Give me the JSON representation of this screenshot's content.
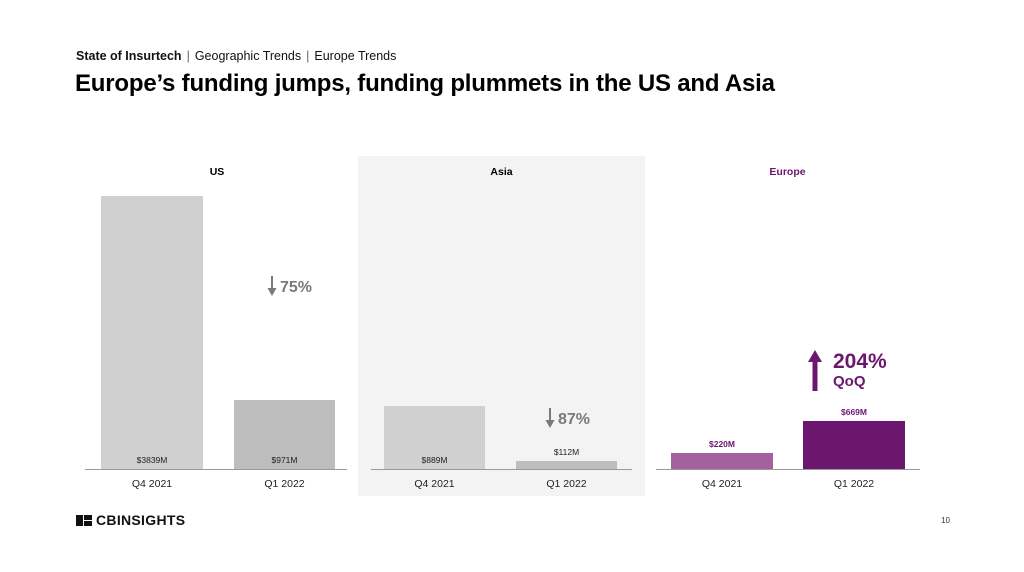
{
  "header": {
    "breadcrumb_main": "State of Insurtech",
    "breadcrumb_2": "Geographic Trends",
    "breadcrumb_3": "Europe Trends",
    "title": "Europe’s funding jumps, funding plummets in the US and Asia"
  },
  "colors": {
    "us_bar": "#d0d0d0",
    "us_bar_2": "#bdbdbd",
    "asia_bar": "#d0d0d0",
    "asia_bar_2": "#bdbdbd",
    "europe_bar_1": "#a4609f",
    "europe_bar_2": "#6b1770",
    "europe_accent": "#6b1770",
    "decline_gray": "#7a7a7a"
  },
  "chart_data": [
    {
      "type": "bar",
      "title": "US",
      "categories": [
        "Q4 2021",
        "Q1 2022"
      ],
      "values": [
        3839,
        971
      ],
      "value_labels": [
        "$3839M",
        "$971M"
      ],
      "unit": "$M",
      "change_label": "75%",
      "change_direction": "down",
      "ylim": [
        0,
        3839
      ]
    },
    {
      "type": "bar",
      "title": "Asia",
      "categories": [
        "Q4 2021",
        "Q1 2022"
      ],
      "values": [
        889,
        112
      ],
      "value_labels": [
        "$889M",
        "$112M"
      ],
      "unit": "$M",
      "change_label": "87%",
      "change_direction": "down",
      "ylim": [
        0,
        889
      ]
    },
    {
      "type": "bar",
      "title": "Europe",
      "categories": [
        "Q4 2021",
        "Q1 2022"
      ],
      "values": [
        220,
        669
      ],
      "value_labels": [
        "$220M",
        "$669M"
      ],
      "unit": "$M",
      "change_label": "204%",
      "change_sublabel": "QoQ",
      "change_direction": "up",
      "ylim": [
        0,
        3839
      ]
    }
  ],
  "footer": {
    "logo_text": "CBINSIGHTS",
    "page_number": "10"
  }
}
